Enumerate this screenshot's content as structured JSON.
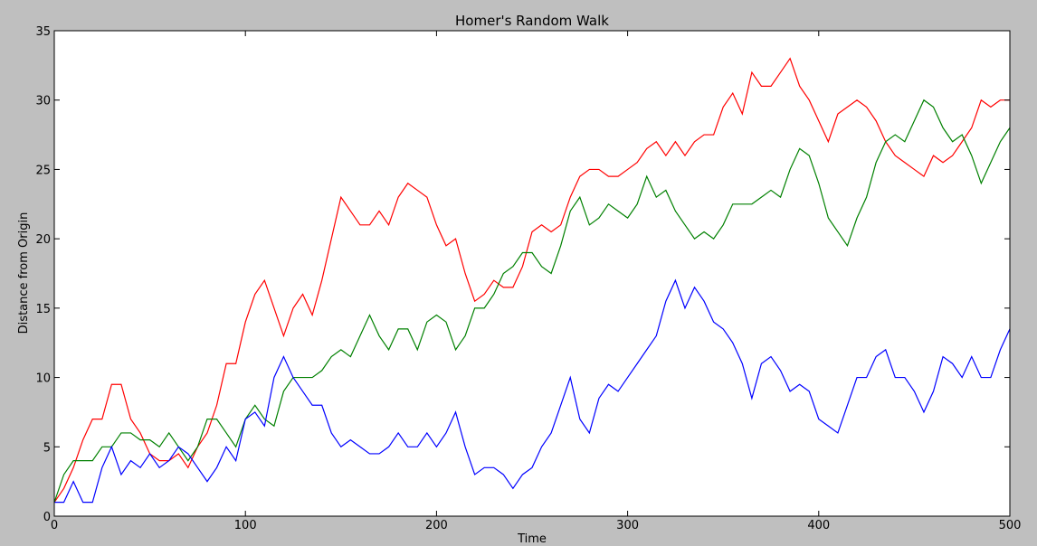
{
  "chart_data": {
    "type": "line",
    "title": "Homer's Random Walk",
    "x_label": "Time",
    "y_label": "Distance from Origin",
    "x": [
      0,
      5,
      10,
      15,
      20,
      25,
      30,
      35,
      40,
      45,
      50,
      55,
      60,
      65,
      70,
      75,
      80,
      85,
      90,
      95,
      100,
      105,
      110,
      115,
      120,
      125,
      130,
      135,
      140,
      145,
      150,
      155,
      160,
      165,
      170,
      175,
      180,
      185,
      190,
      195,
      200,
      205,
      210,
      215,
      220,
      225,
      230,
      235,
      240,
      245,
      250,
      255,
      260,
      265,
      270,
      275,
      280,
      285,
      290,
      295,
      300,
      305,
      310,
      315,
      320,
      325,
      330,
      335,
      340,
      345,
      350,
      355,
      360,
      365,
      370,
      375,
      380,
      385,
      390,
      395,
      400,
      405,
      410,
      415,
      420,
      425,
      430,
      435,
      440,
      445,
      450,
      455,
      460,
      465,
      470,
      475,
      480,
      485,
      490,
      495,
      500
    ],
    "series": [
      {
        "color": "#ff0000",
        "values": [
          1,
          2,
          3.5,
          5.5,
          7,
          7,
          9.5,
          9.5,
          7,
          6,
          4.5,
          4,
          4,
          4.5,
          3.5,
          5,
          6,
          8,
          11,
          11,
          14,
          16,
          17,
          15,
          13,
          15,
          16,
          14.5,
          17,
          20,
          23,
          22,
          21,
          21,
          22,
          21,
          23,
          24,
          23.5,
          23,
          21,
          19.5,
          20,
          17.5,
          15.5,
          16,
          17,
          16.5,
          16.5,
          18,
          20.5,
          21,
          20.5,
          21,
          23,
          24.5,
          25,
          25,
          24.5,
          24.5,
          25,
          25.5,
          26.5,
          27,
          26,
          27,
          26,
          27,
          27.5,
          27.5,
          29.5,
          30.5,
          29,
          32,
          31,
          31,
          32,
          33,
          31,
          30,
          28.5,
          27,
          29,
          29.5,
          30,
          29.5,
          28.5,
          27,
          26,
          25.5,
          25,
          24.5,
          26,
          25.5,
          26,
          27,
          28,
          30,
          29.5,
          30,
          30
        ]
      },
      {
        "color": "#008000",
        "values": [
          1,
          3,
          4,
          4,
          4,
          5,
          5,
          6,
          6,
          5.5,
          5.5,
          5,
          6,
          5,
          4,
          5,
          7,
          7,
          6,
          5,
          7,
          8,
          7,
          6.5,
          9,
          10,
          10,
          10,
          10.5,
          11.5,
          12,
          11.5,
          13,
          14.5,
          13,
          12,
          13.5,
          13.5,
          12,
          14,
          14.5,
          14,
          12,
          13,
          15,
          15,
          16,
          17.5,
          18,
          19,
          19,
          18,
          17.5,
          19.5,
          22,
          23,
          21,
          21.5,
          22.5,
          22,
          21.5,
          22.5,
          24.5,
          23,
          23.5,
          22,
          21,
          20,
          20.5,
          20,
          21,
          22.5,
          22.5,
          22.5,
          23,
          23.5,
          23,
          25,
          26.5,
          26,
          24,
          21.5,
          20.5,
          19.5,
          21.5,
          23,
          25.5,
          27,
          27.5,
          27,
          28.5,
          30,
          29.5,
          28,
          27,
          27.5,
          26,
          24,
          25.5,
          27,
          28
        ]
      },
      {
        "color": "#0000ff",
        "values": [
          1,
          1,
          2.5,
          1,
          1,
          3.5,
          5,
          3,
          4,
          3.5,
          4.5,
          3.5,
          4,
          5,
          4.5,
          3.5,
          2.5,
          3.5,
          5,
          4,
          7,
          7.5,
          6.5,
          10,
          11.5,
          10,
          9,
          8,
          8,
          6,
          5,
          5.5,
          5,
          4.5,
          4.5,
          5,
          6,
          5,
          5,
          6,
          5,
          6,
          7.5,
          5,
          3,
          3.5,
          3.5,
          3,
          2,
          3,
          3.5,
          5,
          6,
          8,
          10,
          7,
          6,
          8.5,
          9.5,
          9,
          10,
          11,
          12,
          13,
          15.5,
          17,
          15,
          16.5,
          15.5,
          14,
          13.5,
          12.5,
          11,
          8.5,
          11,
          11.5,
          10.5,
          9,
          9.5,
          9,
          7,
          6.5,
          6,
          8,
          10,
          10,
          11.5,
          12,
          10,
          10,
          9,
          7.5,
          9,
          11.5,
          11,
          10,
          11.5,
          10,
          10,
          12,
          13.5
        ]
      }
    ],
    "xlim": [
      0,
      500
    ],
    "xticks": [
      0,
      100,
      200,
      300,
      400,
      500
    ],
    "ylim": [
      0,
      35
    ],
    "yticks": [
      0,
      5,
      10,
      15,
      20,
      25,
      30,
      35
    ]
  }
}
